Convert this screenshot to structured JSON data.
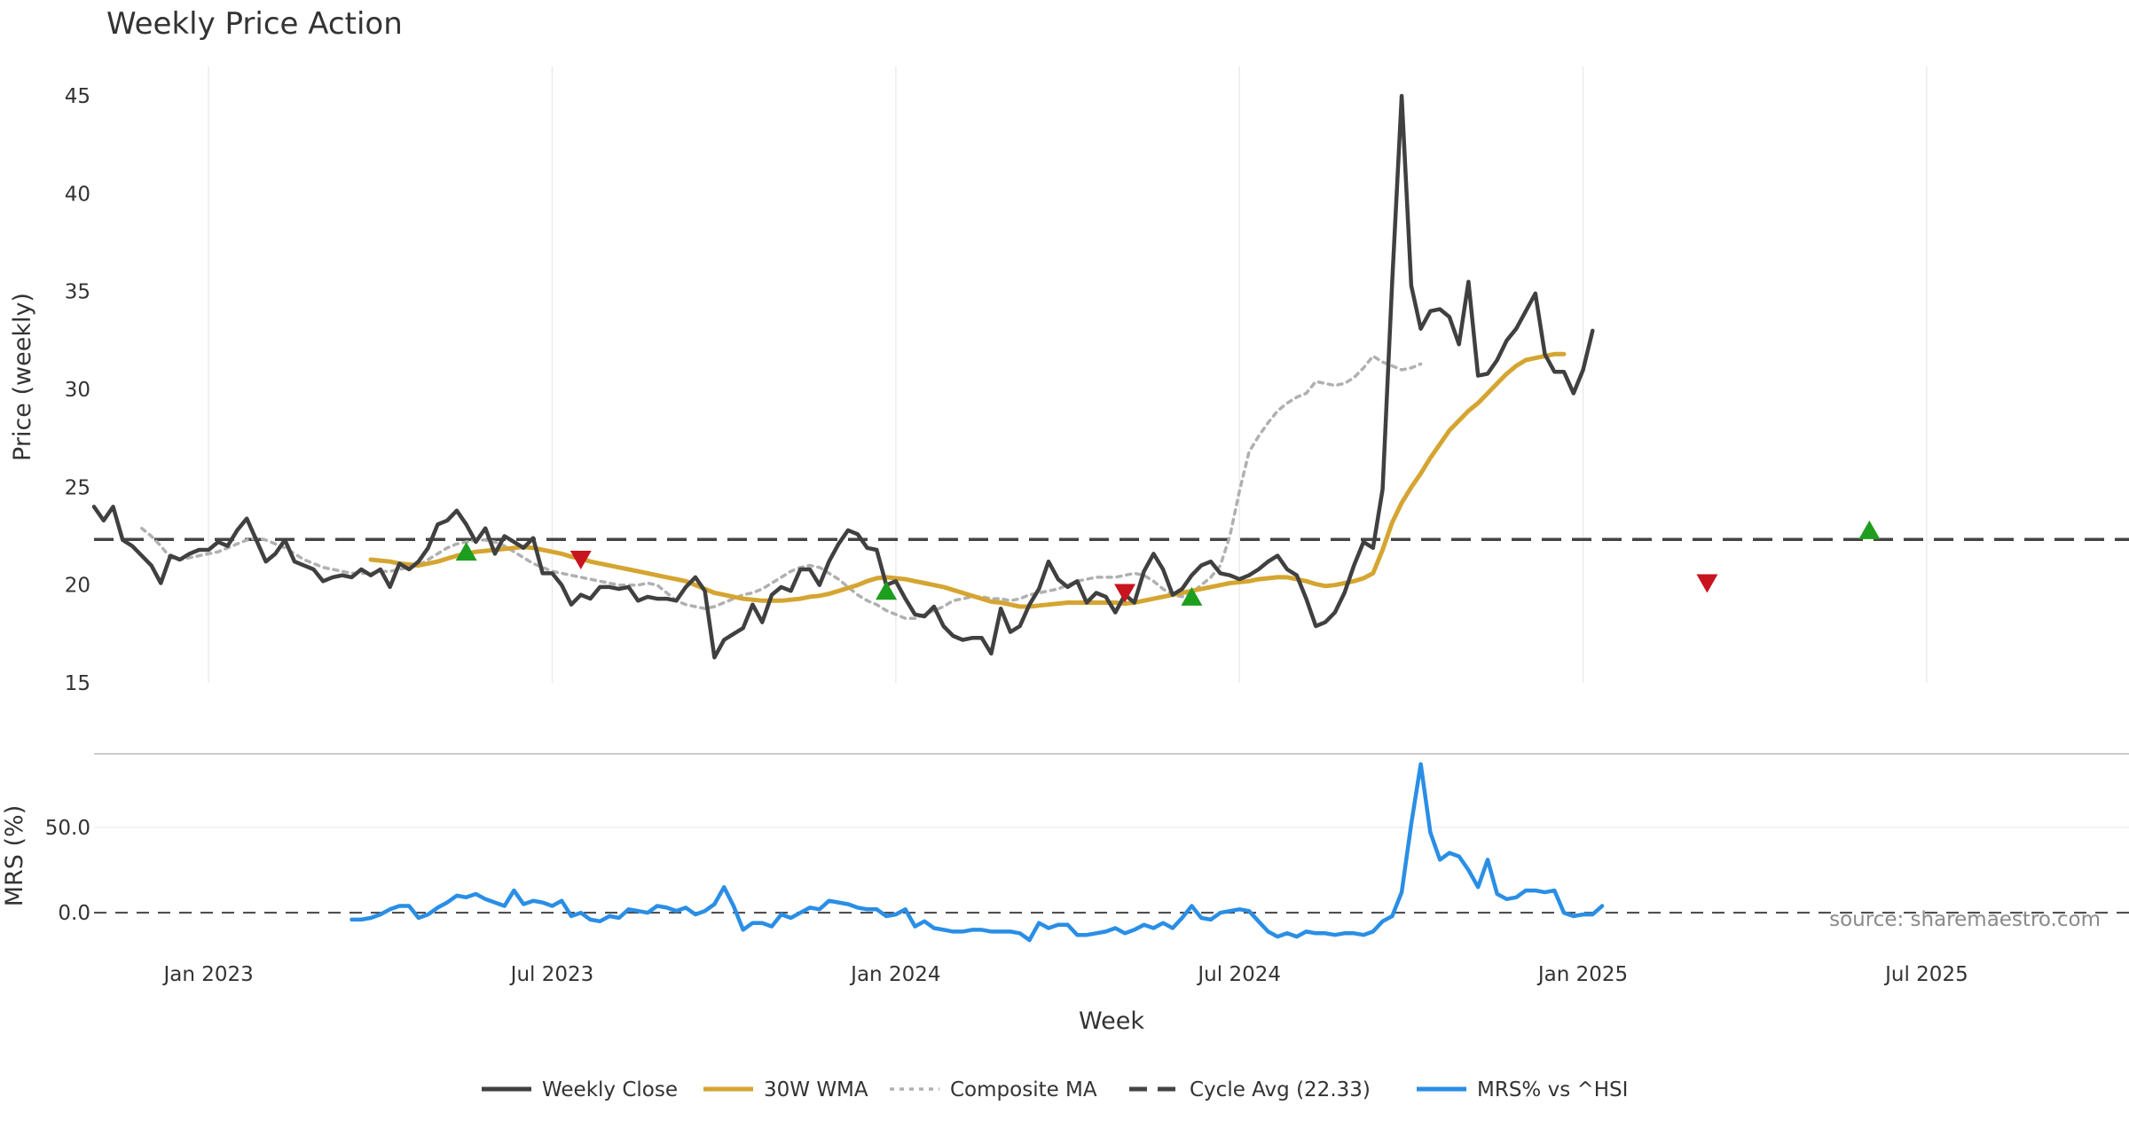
{
  "chart_data": {
    "type": "line",
    "title": "Weekly Price Action",
    "xlabel": "Week",
    "x_ticks": [
      "Jan 2023",
      "Jul 2023",
      "Jan 2024",
      "Jul 2024",
      "Jan 2025",
      "Jul 2025"
    ],
    "x_tick_weeks": [
      12,
      48,
      84,
      120,
      156,
      192
    ],
    "xlim": [
      0,
      223
    ],
    "price_panel": {
      "ylabel": "Price (weekly)",
      "ylim": [
        15,
        46.5
      ],
      "y_ticks": [
        "15",
        "20",
        "25",
        "30",
        "35",
        "40",
        "45"
      ],
      "y_tick_values": [
        15,
        20,
        25,
        30,
        35,
        40,
        45
      ],
      "grid": "vertical",
      "series": [
        {
          "name": "Weekly Close",
          "color": "#404040",
          "style": "solid",
          "x_start": 0,
          "values": [
            24.0,
            23.3,
            24.0,
            22.3,
            22.0,
            21.5,
            21.0,
            20.1,
            21.5,
            21.3,
            21.6,
            21.8,
            21.8,
            22.2,
            22.0,
            22.8,
            23.4,
            22.3,
            21.2,
            21.6,
            22.3,
            21.2,
            21.0,
            20.8,
            20.2,
            20.4,
            20.5,
            20.4,
            20.8,
            20.5,
            20.8,
            19.9,
            21.1,
            20.8,
            21.2,
            21.9,
            23.1,
            23.3,
            23.8,
            23.1,
            22.2,
            22.9,
            21.6,
            22.5,
            22.2,
            21.9,
            22.4,
            20.6,
            20.6,
            20.0,
            19.0,
            19.5,
            19.3,
            19.9,
            19.9,
            19.8,
            19.9,
            19.2,
            19.4,
            19.3,
            19.3,
            19.2,
            19.9,
            20.4,
            19.7,
            16.3,
            17.2,
            17.5,
            17.8,
            19.0,
            18.1,
            19.5,
            19.9,
            19.7,
            20.8,
            20.8,
            20.0,
            21.2,
            22.1,
            22.8,
            22.6,
            21.9,
            21.8,
            20.0,
            20.2,
            19.3,
            18.5,
            18.4,
            18.9,
            17.9,
            17.4,
            17.2,
            17.3,
            17.3,
            16.5,
            18.8,
            17.6,
            17.9,
            19.0,
            19.8,
            21.2,
            20.3,
            19.9,
            20.2,
            19.1,
            19.6,
            19.4,
            18.6,
            19.5,
            19.1,
            20.7,
            21.6,
            20.8,
            19.5,
            19.8,
            20.5,
            21.0,
            21.2,
            20.6,
            20.5,
            20.3,
            20.5,
            20.8,
            21.2,
            21.5,
            20.8,
            20.5,
            19.3,
            17.9,
            18.1,
            18.6,
            19.6,
            21.0,
            22.2,
            21.9,
            24.9,
            35.5,
            45.0,
            35.3,
            33.1,
            34.0,
            34.1,
            33.7,
            32.3,
            35.5,
            30.7,
            30.8,
            31.5,
            32.5,
            33.1,
            34.0,
            34.9,
            31.8,
            30.9,
            30.9,
            29.8,
            31.0,
            33.0
          ]
        },
        {
          "name": "30W WMA",
          "color": "#d4a531",
          "style": "solid",
          "x_start": 29,
          "values": [
            21.3,
            21.25,
            21.2,
            21.1,
            21.05,
            21.0,
            21.1,
            21.2,
            21.35,
            21.5,
            21.6,
            21.7,
            21.75,
            21.8,
            21.85,
            21.9,
            21.95,
            21.9,
            21.8,
            21.7,
            21.6,
            21.45,
            21.35,
            21.2,
            21.1,
            21.0,
            20.9,
            20.8,
            20.7,
            20.6,
            20.5,
            20.4,
            20.3,
            20.2,
            20.0,
            19.8,
            19.6,
            19.5,
            19.4,
            19.3,
            19.25,
            19.2,
            19.2,
            19.2,
            19.25,
            19.3,
            19.4,
            19.45,
            19.55,
            19.7,
            19.85,
            20.0,
            20.2,
            20.35,
            20.4,
            20.35,
            20.3,
            20.2,
            20.1,
            20.0,
            19.9,
            19.75,
            19.6,
            19.45,
            19.3,
            19.15,
            19.1,
            19.0,
            18.9,
            18.9,
            18.95,
            19.0,
            19.05,
            19.1,
            19.1,
            19.1,
            19.1,
            19.1,
            19.1,
            19.05,
            19.1,
            19.2,
            19.3,
            19.4,
            19.5,
            19.6,
            19.7,
            19.8,
            19.9,
            20.0,
            20.1,
            20.15,
            20.2,
            20.3,
            20.35,
            20.4,
            20.4,
            20.3,
            20.2,
            20.05,
            19.95,
            20.0,
            20.1,
            20.2,
            20.35,
            20.6,
            21.8,
            23.2,
            24.2,
            25.0,
            25.7,
            26.5,
            27.2,
            27.9,
            28.4,
            28.9,
            29.3,
            29.8,
            30.3,
            30.8,
            31.2,
            31.5,
            31.6,
            31.7,
            31.8,
            31.8
          ]
        },
        {
          "name": "Composite MA",
          "color": "#b0b0b0",
          "style": "dotted",
          "x_start": 5,
          "values": [
            22.9,
            22.5,
            22.0,
            21.4,
            21.3,
            21.4,
            21.5,
            21.6,
            21.7,
            21.9,
            22.1,
            22.3,
            22.4,
            22.3,
            22.1,
            21.9,
            21.6,
            21.3,
            21.1,
            20.9,
            20.8,
            20.7,
            20.6,
            20.6,
            20.6,
            20.7,
            20.7,
            20.8,
            20.9,
            21.0,
            21.3,
            21.6,
            21.9,
            22.1,
            22.2,
            22.3,
            22.3,
            22.2,
            22.0,
            21.7,
            21.4,
            21.1,
            20.9,
            20.7,
            20.6,
            20.5,
            20.4,
            20.3,
            20.2,
            20.1,
            20.0,
            20.0,
            20.0,
            20.1,
            20.0,
            19.6,
            19.2,
            19.0,
            18.9,
            18.8,
            18.9,
            19.1,
            19.3,
            19.5,
            19.6,
            19.8,
            20.1,
            20.4,
            20.7,
            20.9,
            21.0,
            20.9,
            20.6,
            20.3,
            19.9,
            19.5,
            19.2,
            19.0,
            18.7,
            18.5,
            18.3,
            18.3,
            18.5,
            18.7,
            18.9,
            19.2,
            19.3,
            19.4,
            19.4,
            19.3,
            19.3,
            19.2,
            19.3,
            19.5,
            19.6,
            19.7,
            19.8,
            20.0,
            20.2,
            20.3,
            20.4,
            20.4,
            20.4,
            20.5,
            20.6,
            20.5,
            20.2,
            19.8,
            19.5,
            19.4,
            19.6,
            20.0,
            20.4,
            21.0,
            22.5,
            24.8,
            26.8,
            27.6,
            28.3,
            28.9,
            29.3,
            29.6,
            29.8,
            30.4,
            30.3,
            30.2,
            30.3,
            30.6,
            31.1,
            31.7,
            31.4,
            31.2,
            31.0,
            31.1,
            31.3
          ]
        }
      ],
      "reference_line": {
        "name": "Cycle Avg (22.33)",
        "value": 22.33,
        "color": "#444444",
        "style": "dashed"
      },
      "buy_markers": [
        {
          "x": 39,
          "y": 21.7
        },
        {
          "x": 83,
          "y": 19.7
        },
        {
          "x": 115,
          "y": 19.4
        },
        {
          "x": 186,
          "y": 22.8
        }
      ],
      "sell_markers": [
        {
          "x": 51,
          "y": 21.3
        },
        {
          "x": 108,
          "y": 19.6
        },
        {
          "x": 169,
          "y": 20.1
        }
      ],
      "buy_marker_color": "#1e9e1e",
      "sell_marker_color": "#c8141e"
    },
    "mrs_panel": {
      "ylabel": "MRS (%)",
      "ylim": [
        -16,
        93
      ],
      "y_ticks": [
        "0.0",
        "50.0"
      ],
      "y_tick_values": [
        0,
        50
      ],
      "series": [
        {
          "name": "MRS% vs ^HSI",
          "color": "#2a8ee6",
          "style": "solid",
          "x_start": 27,
          "values": [
            -4,
            -4,
            -3,
            -1,
            2,
            4,
            4,
            -3,
            -1,
            3,
            6,
            10,
            9,
            11,
            8,
            6,
            4,
            13,
            5,
            7,
            6,
            4,
            7,
            -2,
            0,
            -4,
            -5,
            -2,
            -3,
            2,
            1,
            0,
            4,
            3,
            1,
            3,
            -1,
            1,
            5,
            15,
            4,
            -10,
            -6,
            -6,
            -8,
            -1,
            -3,
            0,
            3,
            2,
            7,
            6,
            5,
            3,
            2,
            2,
            -2,
            -1,
            2,
            -8,
            -5,
            -9,
            -10,
            -11,
            -11,
            -10,
            -10,
            -11,
            -11,
            -11,
            -12,
            -16,
            -6,
            -9,
            -7,
            -7,
            -13,
            -13,
            -12,
            -11,
            -9,
            -12,
            -10,
            -7,
            -9,
            -6,
            -9,
            -3,
            4,
            -3,
            -4,
            0,
            1,
            2,
            1,
            -5,
            -11,
            -14,
            -12,
            -14,
            -11,
            -12,
            -12,
            -13,
            -12,
            -12,
            -13,
            -11,
            -5,
            -2,
            12,
            52,
            87,
            47,
            31,
            35,
            33,
            25,
            15,
            31,
            11,
            8,
            9,
            13,
            13,
            12,
            13,
            0,
            -2,
            -1,
            -1,
            4
          ]
        }
      ],
      "reference_line": {
        "value": 0,
        "color": "#444444",
        "style": "dashed"
      }
    },
    "legend": {
      "placement": "bottom",
      "items": [
        {
          "label": "Weekly Close",
          "color": "#404040",
          "style": "solid"
        },
        {
          "label": "30W WMA",
          "color": "#d4a531",
          "style": "solid"
        },
        {
          "label": "Composite MA",
          "color": "#b0b0b0",
          "style": "dotted"
        },
        {
          "label": "Cycle Avg (22.33)",
          "color": "#444444",
          "style": "dashed"
        },
        {
          "label": "MRS% vs ^HSI",
          "color": "#2a8ee6",
          "style": "solid"
        }
      ]
    },
    "watermark": "source: sharemaestro.com"
  }
}
